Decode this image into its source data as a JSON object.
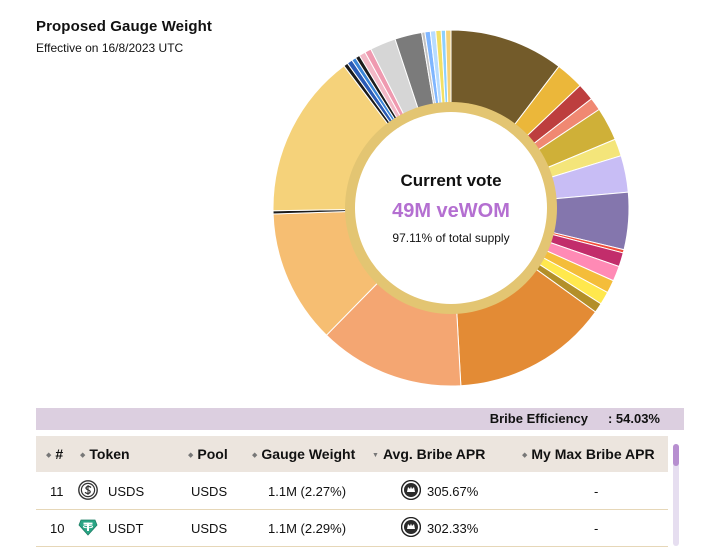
{
  "header": {
    "title": "Proposed Gauge Weight",
    "subtitle": "Effective on 16/8/2023 UTC"
  },
  "vote": {
    "heading": "Current vote",
    "amount": "49M veWOM",
    "supply": "97.11% of total supply"
  },
  "chart_data": {
    "type": "pie",
    "style": "donut",
    "start_angle_deg": 0,
    "direction": "clockwise",
    "slices": [
      {
        "pct": 10.6,
        "color": "#735b2a"
      },
      {
        "pct": 2.6,
        "color": "#ebb73a"
      },
      {
        "pct": 1.6,
        "color": "#bd3e3e"
      },
      {
        "pct": 1.2,
        "color": "#f08872"
      },
      {
        "pct": 3.1,
        "color": "#cfb038"
      },
      {
        "pct": 1.6,
        "color": "#f4e57a"
      },
      {
        "pct": 3.4,
        "color": "#c8bdf5"
      },
      {
        "pct": 5.3,
        "color": "#8476ad"
      },
      {
        "pct": 0.3,
        "color": "#f24d3a"
      },
      {
        "pct": 1.3,
        "color": "#c22d6b"
      },
      {
        "pct": 1.4,
        "color": "#ff8ab5"
      },
      {
        "pct": 1.2,
        "color": "#f4bd3a"
      },
      {
        "pct": 1.2,
        "color": "#ffe84d"
      },
      {
        "pct": 0.9,
        "color": "#b38f29"
      },
      {
        "pct": 14.5,
        "color": "#e38b35"
      },
      {
        "pct": 13.5,
        "color": "#f4a672"
      },
      {
        "pct": 12.4,
        "color": "#f6be72"
      },
      {
        "pct": 0.3,
        "color": "#1b1b1b"
      },
      {
        "pct": 15.3,
        "color": "#f5d27a"
      },
      {
        "pct": 0.4,
        "color": "#1b1b1b"
      },
      {
        "pct": 0.5,
        "color": "#2a5bb5"
      },
      {
        "pct": 0.4,
        "color": "#3a85d6"
      },
      {
        "pct": 0.4,
        "color": "#1b1b1b"
      },
      {
        "pct": 0.6,
        "color": "#f2b8c6"
      },
      {
        "pct": 0.6,
        "color": "#ef9ab0"
      },
      {
        "pct": 2.4,
        "color": "#d6d6d6"
      },
      {
        "pct": 2.5,
        "color": "#7b7b7b"
      },
      {
        "pct": 0.3,
        "color": "#c2c2c2"
      },
      {
        "pct": 0.5,
        "color": "#7fb6ff"
      },
      {
        "pct": 0.5,
        "color": "#b7dcff"
      },
      {
        "pct": 0.5,
        "color": "#f2e066"
      },
      {
        "pct": 0.4,
        "color": "#8dd0ff"
      },
      {
        "pct": 0.5,
        "color": "#f5d27a"
      }
    ]
  },
  "efficiency": {
    "label": "Bribe Efficiency",
    "value": ": 54.03%"
  },
  "table": {
    "columns": {
      "rank": "#",
      "token": "Token",
      "pool": "Pool",
      "weight": "Gauge Weight",
      "apr": "Avg. Bribe APR",
      "max_apr": "My Max Bribe APR"
    },
    "rows": [
      {
        "rank": "11",
        "token": "USDS",
        "icon": "usds-icon",
        "pool": "USDS",
        "weight": "1.1M (2.27%)",
        "apr": "305.67%",
        "max_apr": "-"
      },
      {
        "rank": "10",
        "token": "USDT",
        "icon": "usdt-icon",
        "pool": "USDS",
        "weight": "1.1M (2.29%)",
        "apr": "302.33%",
        "max_apr": "-"
      }
    ]
  },
  "colors": {
    "accent": "#b46fd1",
    "efficiency_bar": "#dccfe0",
    "table_header": "#ece5de"
  }
}
